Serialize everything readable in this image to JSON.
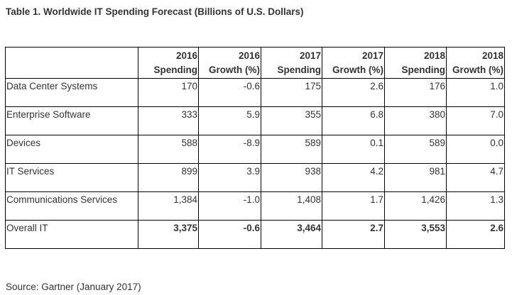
{
  "title": "Table 1. Worldwide IT Spending Forecast (Billions of U.S. Dollars)",
  "columns": [
    {
      "year": "2016",
      "label": "Spending"
    },
    {
      "year": "2016",
      "label": "Growth (%)"
    },
    {
      "year": "2017",
      "label": "Spending"
    },
    {
      "year": "2017",
      "label": "Growth (%)"
    },
    {
      "year": "2018",
      "label": "Spending"
    },
    {
      "year": "2018",
      "label": "Growth (%)"
    }
  ],
  "rows": [
    {
      "name": "Data Center Systems",
      "values": [
        "170",
        "-0.6",
        "175",
        "2.6",
        "176",
        "1.0"
      ]
    },
    {
      "name": "Enterprise Software",
      "values": [
        "333",
        "5.9",
        "355",
        "6.8",
        "380",
        "7.0"
      ]
    },
    {
      "name": "Devices",
      "values": [
        "588",
        "-8.9",
        "589",
        "0.1",
        "589",
        "0.0"
      ]
    },
    {
      "name": "IT Services",
      "values": [
        "899",
        "3.9",
        "938",
        "4.2",
        "981",
        "4.7"
      ]
    },
    {
      "name": "Communications Services",
      "values": [
        "1,384",
        "-1.0",
        "1,408",
        "1.7",
        "1,426",
        "1.3"
      ]
    },
    {
      "name": "Overall IT",
      "values": [
        "3,375",
        "-0.6",
        "3,464",
        "2.7",
        "3,553",
        "2.6"
      ]
    }
  ],
  "source": "Source: Gartner (January 2017)"
}
